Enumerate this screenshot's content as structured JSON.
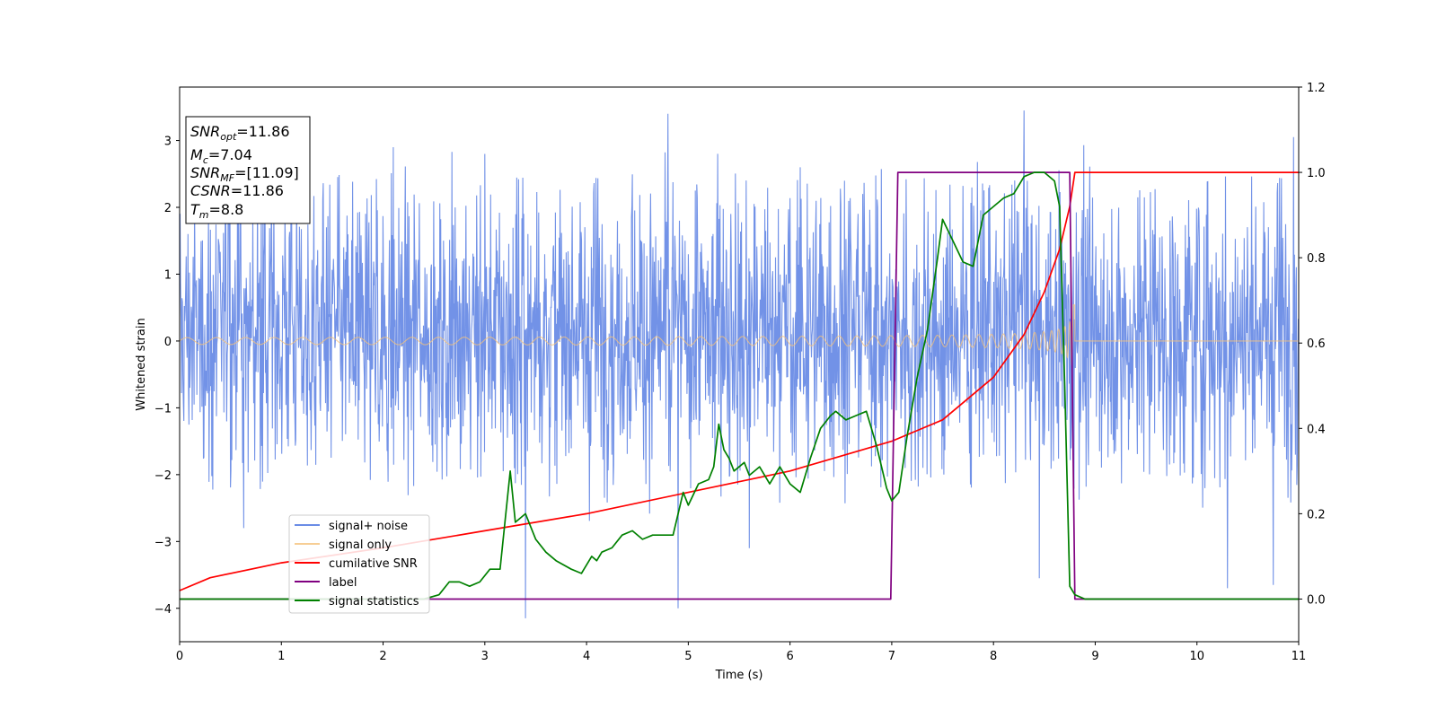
{
  "chart_data": {
    "type": "line",
    "title": "",
    "xlabel": "Time (s)",
    "ylabel": "Whitened strain",
    "xlim": [
      0,
      11
    ],
    "ylim": [
      -4.5,
      3.8
    ],
    "y2lim": [
      -0.1,
      1.2
    ],
    "x_ticks": [
      "0",
      "1",
      "2",
      "3",
      "4",
      "5",
      "6",
      "7",
      "8",
      "9",
      "10",
      "11"
    ],
    "y_ticks": [
      "−4",
      "−3",
      "−2",
      "−1",
      "0",
      "1",
      "2",
      "3"
    ],
    "y2_ticks": [
      "0.0",
      "0.2",
      "0.4",
      "0.6",
      "0.8",
      "1.0",
      "1.2"
    ],
    "grid": false,
    "legend_position": "lower-left",
    "info_box": {
      "snr_opt": "=11.86",
      "mc": "=7.04",
      "snr_mf": "=[11.09]",
      "csnr": "=11.86",
      "tm": "=8.8"
    },
    "series": [
      {
        "name": "signal+ noise",
        "axis": "left",
        "color": "#6a8ce6",
        "kind": "noise band",
        "typical_range": [
          -1.6,
          1.9
        ],
        "peaks": [
          [
            0.63,
            -2.8
          ],
          [
            1.1,
            2.5
          ],
          [
            2.1,
            2.9
          ],
          [
            3.0,
            2.8
          ],
          [
            3.4,
            -4.15
          ],
          [
            4.8,
            3.4
          ],
          [
            4.9,
            -4.0
          ],
          [
            5.6,
            -3.1
          ],
          [
            8.3,
            3.45
          ],
          [
            8.45,
            -3.55
          ],
          [
            10.3,
            -3.7
          ],
          [
            10.75,
            -3.65
          ],
          [
            10.95,
            3.05
          ]
        ]
      },
      {
        "name": "signal only",
        "axis": "left",
        "color": "#f5c27a",
        "kind": "chirp",
        "amplitude_start": 0.05,
        "amplitude_end": 0.9,
        "merger_time": 8.8
      },
      {
        "name": "cumilative SNR",
        "axis": "right",
        "color": "#ff0000",
        "x": [
          0,
          0.3,
          1,
          2,
          3,
          4,
          5,
          6,
          7,
          7.5,
          8,
          8.3,
          8.5,
          8.65,
          8.75,
          8.8,
          11
        ],
        "values": [
          0.02,
          0.05,
          0.085,
          0.12,
          0.16,
          0.2,
          0.25,
          0.3,
          0.37,
          0.42,
          0.52,
          0.62,
          0.72,
          0.82,
          0.92,
          1.0,
          1.0
        ]
      },
      {
        "name": "label",
        "axis": "right",
        "color": "#800080",
        "x": [
          0,
          6.99,
          7.06,
          8.75,
          8.8,
          11
        ],
        "values": [
          0,
          0,
          1,
          1,
          0,
          0
        ]
      },
      {
        "name": "signal statistics",
        "axis": "right",
        "color": "#008000",
        "x": [
          0,
          2.4,
          2.55,
          2.65,
          2.75,
          2.85,
          2.95,
          3.05,
          3.15,
          3.25,
          3.3,
          3.4,
          3.5,
          3.6,
          3.7,
          3.85,
          3.95,
          4.05,
          4.1,
          4.15,
          4.25,
          4.35,
          4.45,
          4.55,
          4.65,
          4.75,
          4.85,
          4.95,
          5.0,
          5.1,
          5.2,
          5.25,
          5.3,
          5.35,
          5.4,
          5.45,
          5.55,
          5.6,
          5.7,
          5.8,
          5.9,
          6.0,
          6.1,
          6.2,
          6.3,
          6.4,
          6.45,
          6.55,
          6.65,
          6.75,
          6.85,
          6.95,
          7.0,
          7.07,
          7.15,
          7.25,
          7.35,
          7.45,
          7.5,
          7.6,
          7.7,
          7.8,
          7.9,
          8.0,
          8.1,
          8.2,
          8.3,
          8.4,
          8.5,
          8.6,
          8.65,
          8.7,
          8.75,
          8.8,
          8.9,
          9.0,
          11.0
        ],
        "values": [
          0,
          0,
          0.01,
          0.04,
          0.04,
          0.03,
          0.04,
          0.07,
          0.07,
          0.3,
          0.18,
          0.2,
          0.14,
          0.11,
          0.09,
          0.07,
          0.06,
          0.1,
          0.09,
          0.11,
          0.12,
          0.15,
          0.16,
          0.14,
          0.15,
          0.15,
          0.15,
          0.25,
          0.22,
          0.27,
          0.28,
          0.31,
          0.41,
          0.35,
          0.33,
          0.3,
          0.32,
          0.29,
          0.31,
          0.27,
          0.31,
          0.27,
          0.25,
          0.33,
          0.4,
          0.43,
          0.44,
          0.42,
          0.43,
          0.44,
          0.36,
          0.26,
          0.23,
          0.25,
          0.38,
          0.52,
          0.63,
          0.8,
          0.89,
          0.84,
          0.79,
          0.78,
          0.9,
          0.92,
          0.94,
          0.95,
          0.99,
          1.0,
          1.0,
          0.98,
          0.92,
          0.5,
          0.03,
          0.01,
          0.0,
          0.0,
          0.0
        ]
      }
    ]
  }
}
